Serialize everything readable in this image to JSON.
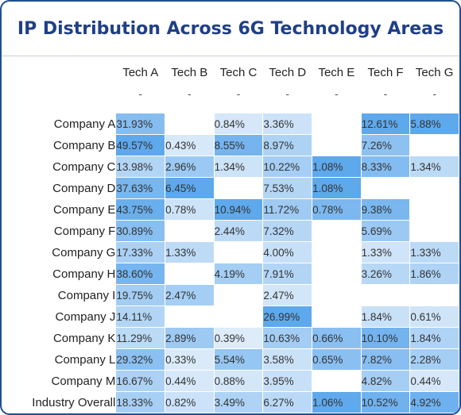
{
  "title": "IP Distribution Across 6G Technology Areas",
  "colors": {
    "frame": "#1f4e91",
    "title": "#1f3f87",
    "heat_low": "#e9f2fb",
    "heat_high": "#5ea8ec"
  },
  "chart_data": {
    "type": "heatmap",
    "title": "IP Distribution Across 6G Technology Areas",
    "columns": [
      {
        "label": "Tech A",
        "sub": "-"
      },
      {
        "label": "Tech B",
        "sub": "-"
      },
      {
        "label": "Tech C",
        "sub": "-"
      },
      {
        "label": "Tech D",
        "sub": "-"
      },
      {
        "label": "Tech E",
        "sub": "-"
      },
      {
        "label": "Tech F",
        "sub": "-"
      },
      {
        "label": "Tech G",
        "sub": "-"
      }
    ],
    "rows": [
      {
        "label": "Company A",
        "values": [
          "31.93%",
          "",
          "0.84%",
          "3.36%",
          "",
          "12.61%",
          "5.88%"
        ]
      },
      {
        "label": "Company B",
        "values": [
          "49.57%",
          "0.43%",
          "8.55%",
          "8.97%",
          "",
          "7.26%",
          ""
        ]
      },
      {
        "label": "Company C",
        "values": [
          "13.98%",
          "2.96%",
          "1.34%",
          "10.22%",
          "1.08%",
          "8.33%",
          "1.34%"
        ]
      },
      {
        "label": "Company D",
        "values": [
          "37.63%",
          "6.45%",
          "",
          "7.53%",
          "1.08%",
          "",
          ""
        ]
      },
      {
        "label": "Company E",
        "values": [
          "43.75%",
          "0.78%",
          "10.94%",
          "11.72%",
          "0.78%",
          "9.38%",
          ""
        ]
      },
      {
        "label": "Company F",
        "values": [
          "30.89%",
          "",
          "2.44%",
          "7.32%",
          "",
          "5.69%",
          ""
        ]
      },
      {
        "label": "Company G",
        "values": [
          "17.33%",
          "1.33%",
          "",
          "4.00%",
          "",
          "1.33%",
          "1.33%"
        ]
      },
      {
        "label": "Company H",
        "values": [
          "38.60%",
          "",
          "4.19%",
          "7.91%",
          "",
          "3.26%",
          "1.86%"
        ]
      },
      {
        "label": "Company I",
        "values": [
          "19.75%",
          "2.47%",
          "",
          "2.47%",
          "",
          "",
          ""
        ]
      },
      {
        "label": "Company J",
        "values": [
          "14.11%",
          "",
          "",
          "26.99%",
          "",
          "1.84%",
          "0.61%"
        ]
      },
      {
        "label": "Company K",
        "values": [
          "11.29%",
          "2.89%",
          "0.39%",
          "10.63%",
          "0.66%",
          "10.10%",
          "1.84%"
        ]
      },
      {
        "label": "Company L",
        "values": [
          "29.32%",
          "0.33%",
          "5.54%",
          "3.58%",
          "0.65%",
          "7.82%",
          "2.28%"
        ]
      },
      {
        "label": "Company M",
        "values": [
          "16.67%",
          "0.44%",
          "0.88%",
          "3.95%",
          "",
          "4.82%",
          "0.44%"
        ]
      },
      {
        "label": "Industry Overall",
        "values": [
          "18.33%",
          "0.82%",
          "3.49%",
          "6.27%",
          "1.06%",
          "10.52%",
          "4.92%"
        ]
      }
    ]
  }
}
